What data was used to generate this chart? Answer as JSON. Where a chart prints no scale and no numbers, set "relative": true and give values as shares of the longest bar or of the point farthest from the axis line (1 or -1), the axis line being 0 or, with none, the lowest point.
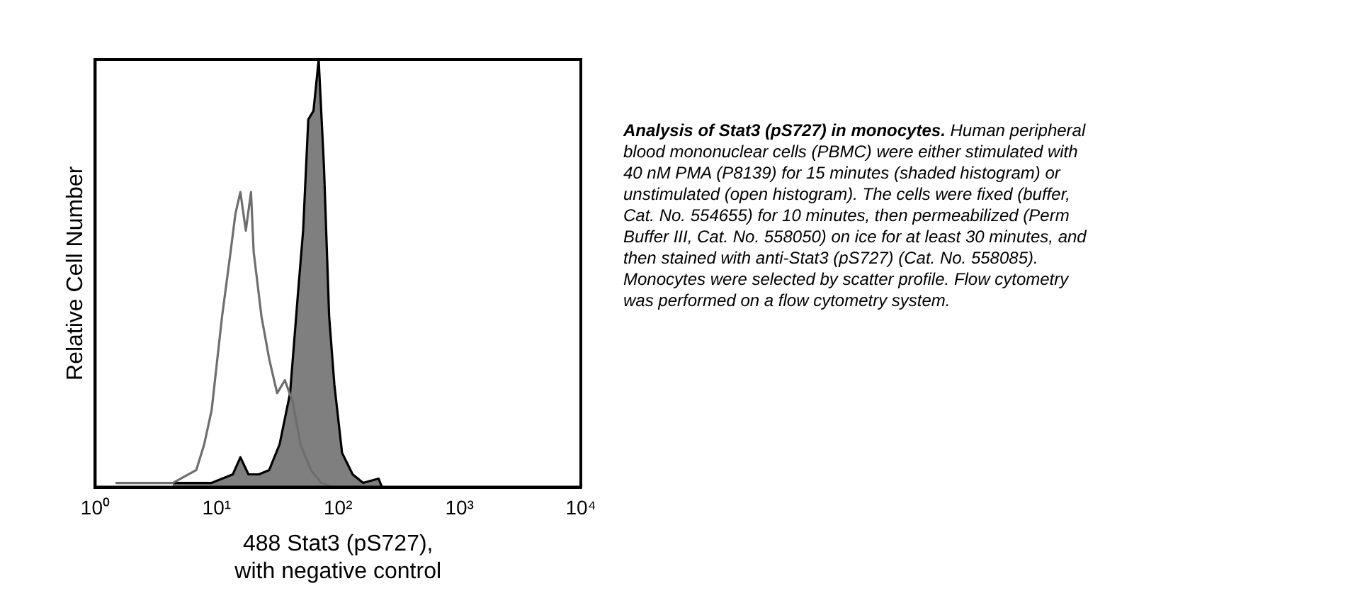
{
  "chart_data": {
    "type": "line",
    "title": "Analysis of Stat3 (pS727) in monocytes.",
    "xlabel": "488 Stat3 (pS727),\nwith negative control",
    "ylabel": "Relative Cell Number",
    "relative": true,
    "log": "x",
    "xlim": [
      1,
      10000
    ],
    "xticks": [
      {
        "value": 1,
        "label": "10⁰"
      },
      {
        "value": 10,
        "label": "10¹"
      },
      {
        "value": 100,
        "label": "10²"
      },
      {
        "value": 1000,
        "label": "10³"
      },
      {
        "value": 10000,
        "label": "10⁴"
      }
    ],
    "grid": false,
    "legend": false,
    "marker": "none",
    "line_style": "solid",
    "annotations": [
      "Human peripheral blood mononuclear cells (PBMC) were either stimulated with 40 nM PMA (P8139) for 15 minutes (shaded histogram) or unstimulated (open histogram).  The cells were fixed (buffer, Cat. No. 554655) for 10 minutes, then permeabilized (Perm Buffer III, Cat. No. 558050) on ice for at least 30 minutes, and then stained with anti-Stat3 (pS727) (Cat. No. 558085).  Monocytes were selected by scatter profile. Flow cytometry was performed on a flow cytometry system."
    ],
    "series": [
      {
        "type": "area",
        "color": "#7f7f7f",
        "x": [
          4.36,
          9.1,
          13.6,
          15.7,
          18.3,
          22.3,
          27.1,
          33.0,
          40.3,
          46.7,
          51.6,
          56.9,
          62.8,
          69.3,
          76.6,
          84.5,
          93.3,
          108,
          132,
          161,
          216,
          230
        ],
        "values": [
          0.01,
          0.01,
          0.03,
          0.07,
          0.03,
          0.03,
          0.04,
          0.1,
          0.22,
          0.45,
          0.6,
          0.86,
          0.88,
          1.0,
          0.75,
          0.4,
          0.24,
          0.08,
          0.03,
          0.01,
          0.02,
          0
        ]
      },
      {
        "color": "#6e6e6e",
        "x": [
          1.47,
          1.71,
          4.36,
          6.8,
          7.9,
          9.1,
          11.1,
          12.9,
          14.3,
          15.7,
          17.4,
          19.2,
          20.2,
          23.4,
          27.1,
          31.5,
          36.5,
          42.3,
          49.1,
          59.8,
          73,
          88.8
        ],
        "values": [
          0.01,
          0.01,
          0.01,
          0.04,
          0.1,
          0.18,
          0.4,
          0.54,
          0.64,
          0.69,
          0.6,
          0.69,
          0.55,
          0.4,
          0.3,
          0.22,
          0.25,
          0.2,
          0.1,
          0.04,
          0.01,
          0
        ]
      }
    ]
  }
}
